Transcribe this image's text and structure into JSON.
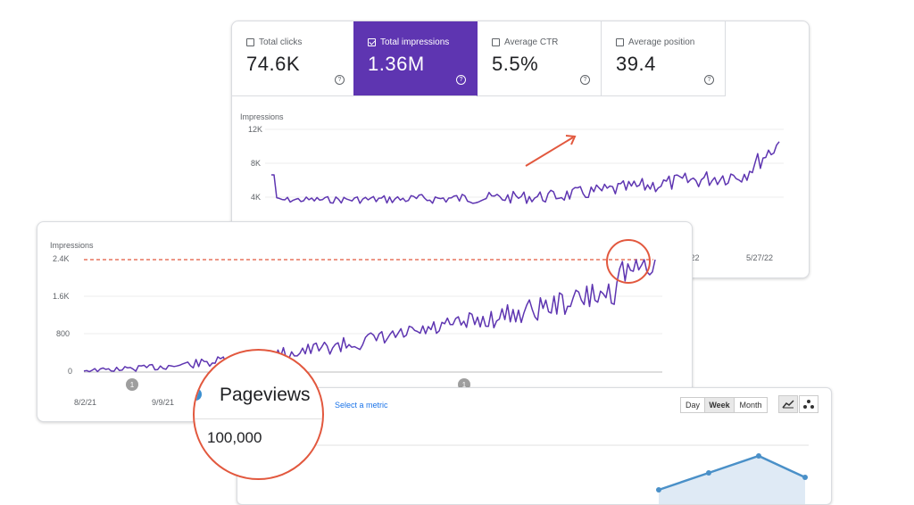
{
  "card1": {
    "metrics": [
      {
        "label": "Total clicks",
        "value": "74.6K",
        "checked": false
      },
      {
        "label": "Total impressions",
        "value": "1.36M",
        "checked": true
      },
      {
        "label": "Average CTR",
        "value": "5.5%",
        "checked": false
      },
      {
        "label": "Average position",
        "value": "39.4",
        "checked": false
      }
    ],
    "help_glyph": "?",
    "chart_data": {
      "type": "line",
      "ylabel": "Impressions",
      "yticks": [
        "12K",
        "8K",
        "4K"
      ],
      "xticks": [
        "/22",
        "5/27/22"
      ],
      "color": "#5e35b1"
    }
  },
  "card2": {
    "chart_data": {
      "type": "line",
      "ylabel": "Impressions",
      "yticks": [
        "2.4K",
        "1.6K",
        "800",
        "0"
      ],
      "xticks": [
        "8/2/21",
        "9/9/21"
      ],
      "annotation_markers": [
        "1",
        "1"
      ],
      "reference_line": {
        "value": "2.4K",
        "color": "#e2583e"
      },
      "color": "#5e35b1"
    }
  },
  "card3": {
    "select_metric": "Select a metric",
    "periods": [
      {
        "label": "Day",
        "active": false
      },
      {
        "label": "Week",
        "active": true
      },
      {
        "label": "Month",
        "active": false
      }
    ],
    "view_icons": [
      "line-chart-icon",
      "motion-chart-icon"
    ],
    "color": "#4a90c8"
  },
  "magnifier": {
    "title": "Pageviews",
    "value": "100,000",
    "dot_color": "#3b8fd0"
  },
  "colors": {
    "accent": "#5e35b1",
    "annotation": "#e2583e"
  }
}
